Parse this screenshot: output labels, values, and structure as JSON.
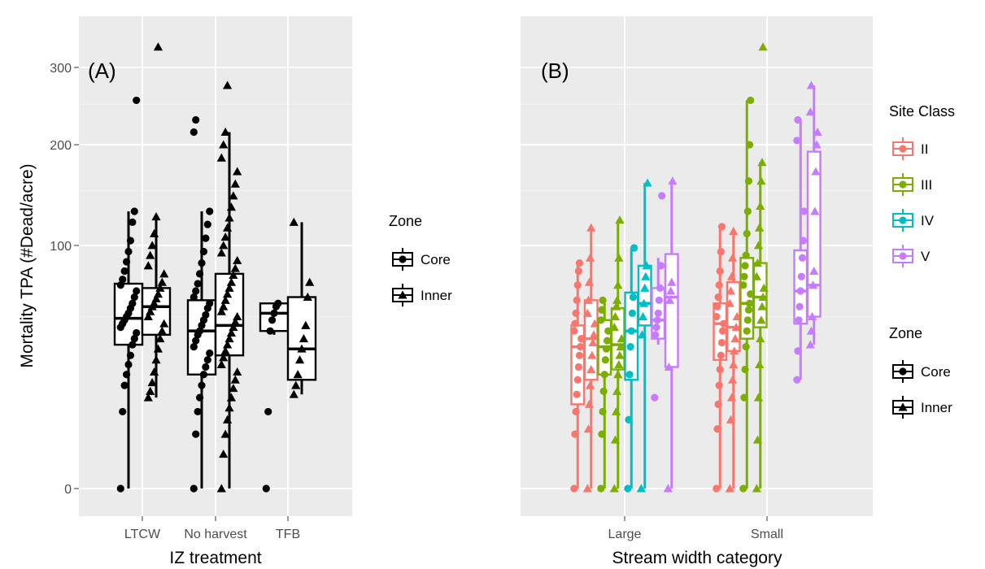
{
  "chart_data": [
    {
      "type": "boxplot",
      "panel_label": "(A)",
      "xlabel": "IZ treatment",
      "ylabel": "Mortality TPA (#Dead/acre)",
      "y_scale": "sqrt",
      "ylim": [
        0,
        340
      ],
      "y_ticks": [
        0,
        100,
        200,
        300
      ],
      "categories": [
        "LTCW",
        "No harvest",
        "TFB"
      ],
      "legend": {
        "title": "Zone",
        "entries": [
          "Core",
          "Inner"
        ],
        "placement": "right"
      },
      "series": [
        {
          "name": "Core",
          "shape": "circle",
          "color": "#000000",
          "boxes": [
            {
              "min": 0,
              "q1": 35,
              "median": 49,
              "q3": 71,
              "max": 130,
              "points": [
                0,
                10,
                18,
                22,
                26,
                30,
                35,
                38,
                41,
                44,
                46,
                48,
                50,
                52,
                55,
                58,
                62,
                66,
                70,
                74,
                80,
                87,
                95,
                104,
                120,
                130,
                255
              ]
            },
            {
              "min": 0,
              "q1": 22,
              "median": 42,
              "q3": 60,
              "max": 130,
              "points": [
                0,
                5,
                10,
                14,
                18,
                22,
                25,
                28,
                31,
                34,
                37,
                40,
                42,
                45,
                48,
                51,
                55,
                58,
                62,
                66,
                71,
                78,
                86,
                95,
                106,
                118,
                130,
                215,
                230
              ]
            },
            {
              "min": 40,
              "q1": 42,
              "median": 52,
              "q3": 58,
              "max": 58,
              "points": [
                0,
                10,
                42,
                48,
                52,
                56,
                58
              ]
            }
          ]
        },
        {
          "name": "Inner",
          "shape": "triangle",
          "color": "#000000",
          "boxes": [
            {
              "min": 14,
              "q1": 40,
              "median": 56,
              "q3": 68,
              "max": 125,
              "points": [
                14,
                16,
                19,
                23,
                28,
                33,
                38,
                42,
                46,
                50,
                53,
                56,
                58,
                61,
                64,
                68,
                72,
                78,
                84,
                92,
                100,
                110,
                125,
                330
              ]
            },
            {
              "min": 0,
              "q1": 30,
              "median": 45,
              "q3": 78,
              "max": 215,
              "points": [
                0,
                2,
                5,
                8,
                11,
                14,
                17,
                20,
                23,
                26,
                29,
                32,
                35,
                38,
                41,
                44,
                47,
                50,
                53,
                56,
                60,
                64,
                68,
                72,
                77,
                82,
                88,
                94,
                100,
                107,
                115,
                124,
                134,
                145,
                157,
                170,
                185,
                200,
                215,
                275
              ]
            },
            {
              "min": 15,
              "q1": 20,
              "median": 33,
              "q3": 62,
              "max": 120,
              "points": [
                15,
                18,
                22,
                28,
                33,
                38,
                45,
                62,
                72,
                120
              ]
            }
          ]
        }
      ]
    },
    {
      "type": "boxplot",
      "panel_label": "(B)",
      "xlabel": "Stream width category",
      "ylabel": "",
      "y_scale": "sqrt",
      "ylim": [
        0,
        340
      ],
      "y_ticks": [
        0,
        100,
        200,
        300
      ],
      "categories": [
        "Large",
        "Small"
      ],
      "legend": [
        {
          "title": "Site Class",
          "entries": [
            "II",
            "III",
            "IV",
            "V"
          ],
          "colors": [
            "#F8766D",
            "#7CAE00",
            "#00BFC4",
            "#C77CFF"
          ],
          "placement": "right"
        },
        {
          "title": "Zone",
          "entries": [
            "Core",
            "Inner"
          ],
          "placement": "right"
        }
      ],
      "groups": [
        {
          "category": "Large",
          "boxes": [
            {
              "site_class": "II",
              "zone": "Core",
              "min": 0,
              "q1": 12,
              "median": 34,
              "q3": 45,
              "max": 86,
              "points": [
                0,
                5,
                10,
                15,
                20,
                25,
                30,
                34,
                38,
                42,
                46,
                52,
                60,
                70,
                80,
                86
              ]
            },
            {
              "site_class": "II",
              "zone": "Inner",
              "min": 0,
              "q1": 20,
              "median": 38,
              "q3": 60,
              "max": 115,
              "points": [
                0,
                6,
                12,
                18,
                24,
                30,
                36,
                40,
                46,
                52,
                60,
                72,
                90,
                115
              ]
            },
            {
              "site_class": "III",
              "zone": "Core",
              "min": 0,
              "q1": 22,
              "median": 34,
              "q3": 48,
              "max": 60,
              "points": [
                0,
                5,
                10,
                16,
                22,
                28,
                33,
                37,
                42,
                48,
                54,
                60
              ]
            },
            {
              "site_class": "III",
              "zone": "Inner",
              "min": 0,
              "q1": 24,
              "median": 35,
              "q3": 55,
              "max": 122,
              "points": [
                0,
                4,
                10,
                16,
                22,
                26,
                30,
                34,
                38,
                44,
                50,
                56,
                60,
                70,
                90,
                122
              ]
            },
            {
              "site_class": "IV",
              "zone": "Core",
              "min": 0,
              "q1": 20,
              "median": 42,
              "q3": 65,
              "max": 98,
              "points": [
                0,
                8,
                22,
                34,
                42,
                52,
                62,
                98
              ]
            },
            {
              "site_class": "IV",
              "zone": "Inner",
              "min": 0,
              "q1": 45,
              "median": 58,
              "q3": 84,
              "max": 158,
              "points": [
                0,
                40,
                50,
                58,
                68,
                76,
                84,
                158
              ]
            },
            {
              "site_class": "V",
              "zone": "Core",
              "min": 35,
              "q1": 38,
              "median": 48,
              "q3": 68,
              "max": 90,
              "points": [
                14,
                40,
                44,
                48,
                52,
                60,
                68,
                84,
                145
              ]
            },
            {
              "site_class": "V",
              "zone": "Inner",
              "min": 0,
              "q1": 25,
              "median": 62,
              "q3": 93,
              "max": 160,
              "points": [
                0,
                25,
                60,
                66,
                72,
                160
              ]
            }
          ]
        },
        {
          "category": "Small",
          "boxes": [
            {
              "site_class": "II",
              "zone": "Core",
              "min": 0,
              "q1": 28,
              "median": 46,
              "q3": 58,
              "max": 116,
              "points": [
                0,
                6,
                12,
                18,
                24,
                30,
                36,
                42,
                46,
                50,
                56,
                62,
                70,
                80,
                95,
                116
              ]
            },
            {
              "site_class": "II",
              "zone": "Inner",
              "min": 0,
              "q1": 32,
              "median": 44,
              "q3": 72,
              "max": 112,
              "points": [
                0,
                8,
                14,
                20,
                26,
                32,
                38,
                44,
                50,
                58,
                66,
                76,
                90,
                112
              ]
            },
            {
              "site_class": "III",
              "zone": "Core",
              "min": 0,
              "q1": 38,
              "median": 58,
              "q3": 90,
              "max": 255,
              "points": [
                0,
                14,
                24,
                34,
                42,
                48,
                54,
                58,
                64,
                70,
                76,
                84,
                92,
                110,
                130,
                160,
                200,
                255
              ]
            },
            {
              "site_class": "III",
              "zone": "Inner",
              "min": 0,
              "q1": 44,
              "median": 62,
              "q3": 86,
              "max": 180,
              "points": [
                0,
                4,
                14,
                26,
                38,
                48,
                56,
                62,
                68,
                76,
                86,
                100,
                115,
                135,
                160,
                180,
                330
              ]
            },
            {
              "site_class": "V",
              "zone": "Core",
              "min": 20,
              "q1": 46,
              "median": 66,
              "q3": 96,
              "max": 230,
              "points": [
                20,
                32,
                48,
                56,
                66,
                76,
                90,
                104,
                130,
                205,
                230
              ]
            },
            {
              "site_class": "V",
              "zone": "Inner",
              "min": 35,
              "q1": 50,
              "median": 70,
              "q3": 192,
              "max": 275,
              "points": [
                35,
                42,
                50,
                70,
                80,
                130,
                170,
                200,
                215,
                240,
                275
              ]
            }
          ]
        }
      ]
    }
  ]
}
